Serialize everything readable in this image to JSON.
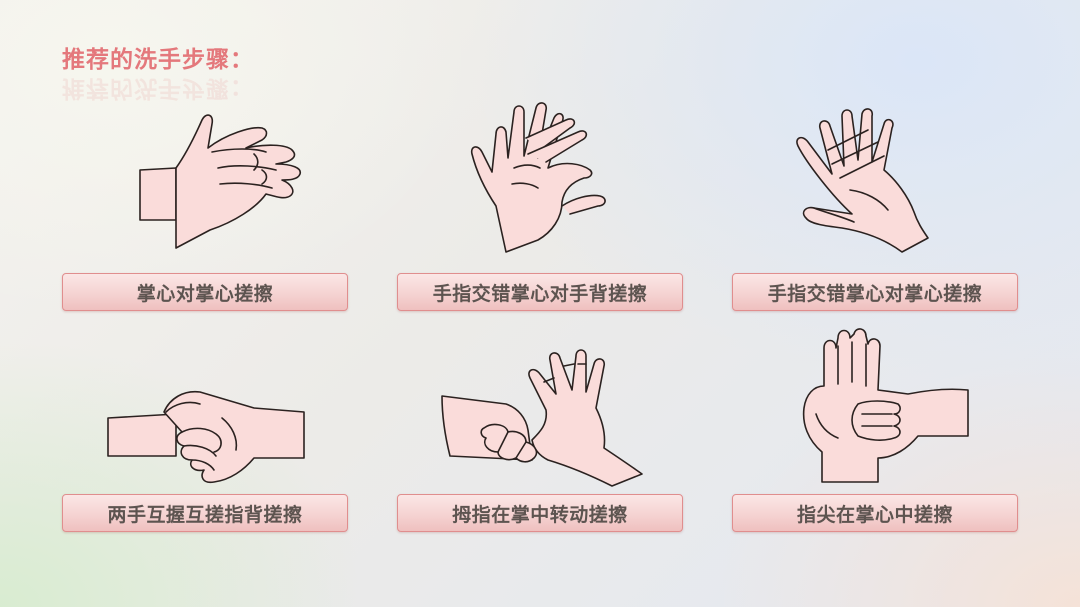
{
  "title": "推荐的洗手步骤：",
  "steps": [
    {
      "label": "掌心对掌心搓擦"
    },
    {
      "label": "手指交错掌心对手背搓擦"
    },
    {
      "label": "手指交错掌心对掌心搓擦"
    },
    {
      "label": "两手互握互搓指背搓擦"
    },
    {
      "label": "拇指在掌中转动搓擦"
    },
    {
      "label": "指尖在掌心中搓擦"
    }
  ],
  "colors": {
    "title": "#e4787c",
    "skin": "#fadcda",
    "outline": "#2b2220",
    "label_text": "#5d5450"
  }
}
